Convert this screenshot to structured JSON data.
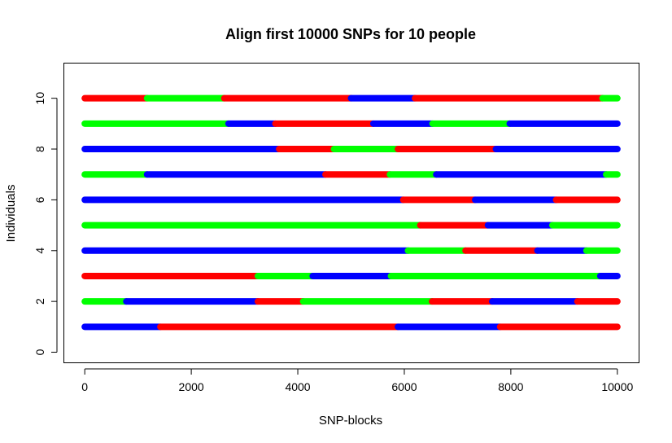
{
  "chart_data": {
    "type": "line",
    "title": "Align first 10000 SNPs for 10 people",
    "xlabel": "SNP-blocks",
    "ylabel": "Individuals",
    "xlim": [
      -400,
      10400
    ],
    "ylim": [
      -0.4,
      11.4
    ],
    "xticks": [
      0,
      2000,
      4000,
      6000,
      8000,
      10000
    ],
    "yticks": [
      0,
      2,
      4,
      6,
      8,
      10
    ],
    "grid": false,
    "colors": {
      "red": "#ff0000",
      "green": "#00ff00",
      "blue": "#0000ff"
    },
    "individuals": [
      {
        "y": 1,
        "segments": [
          [
            0,
            1420,
            "blue"
          ],
          [
            1420,
            5880,
            "red"
          ],
          [
            5880,
            7800,
            "blue"
          ],
          [
            7800,
            10000,
            "red"
          ]
        ]
      },
      {
        "y": 2,
        "segments": [
          [
            0,
            780,
            "green"
          ],
          [
            780,
            3250,
            "blue"
          ],
          [
            3250,
            4100,
            "red"
          ],
          [
            4100,
            6520,
            "green"
          ],
          [
            6520,
            7650,
            "red"
          ],
          [
            7650,
            9250,
            "blue"
          ],
          [
            9250,
            10000,
            "red"
          ]
        ]
      },
      {
        "y": 3,
        "segments": [
          [
            0,
            3250,
            "red"
          ],
          [
            3250,
            4280,
            "green"
          ],
          [
            4280,
            5750,
            "blue"
          ],
          [
            5750,
            9680,
            "green"
          ],
          [
            9680,
            10000,
            "blue"
          ]
        ]
      },
      {
        "y": 4,
        "segments": [
          [
            0,
            6070,
            "blue"
          ],
          [
            6070,
            7150,
            "green"
          ],
          [
            7150,
            8500,
            "red"
          ],
          [
            8500,
            9420,
            "blue"
          ],
          [
            9420,
            10000,
            "green"
          ]
        ]
      },
      {
        "y": 5,
        "segments": [
          [
            0,
            6300,
            "green"
          ],
          [
            6300,
            7570,
            "red"
          ],
          [
            7570,
            8780,
            "blue"
          ],
          [
            8780,
            10000,
            "green"
          ]
        ]
      },
      {
        "y": 6,
        "segments": [
          [
            0,
            5980,
            "blue"
          ],
          [
            5980,
            7330,
            "red"
          ],
          [
            7330,
            8850,
            "blue"
          ],
          [
            8850,
            10000,
            "red"
          ]
        ]
      },
      {
        "y": 7,
        "segments": [
          [
            0,
            1170,
            "green"
          ],
          [
            1170,
            4520,
            "blue"
          ],
          [
            4520,
            5730,
            "red"
          ],
          [
            5730,
            6600,
            "green"
          ],
          [
            6600,
            9790,
            "blue"
          ],
          [
            9790,
            10000,
            "green"
          ]
        ]
      },
      {
        "y": 8,
        "segments": [
          [
            0,
            3650,
            "blue"
          ],
          [
            3650,
            4680,
            "red"
          ],
          [
            4680,
            5880,
            "green"
          ],
          [
            5880,
            7720,
            "red"
          ],
          [
            7720,
            10000,
            "blue"
          ]
        ]
      },
      {
        "y": 9,
        "segments": [
          [
            0,
            2700,
            "green"
          ],
          [
            2700,
            3580,
            "blue"
          ],
          [
            3580,
            5420,
            "red"
          ],
          [
            5420,
            6530,
            "blue"
          ],
          [
            6530,
            7980,
            "green"
          ],
          [
            7980,
            10000,
            "blue"
          ]
        ]
      },
      {
        "y": 10,
        "segments": [
          [
            0,
            1170,
            "red"
          ],
          [
            1170,
            2620,
            "green"
          ],
          [
            2620,
            5000,
            "red"
          ],
          [
            5000,
            6200,
            "blue"
          ],
          [
            6200,
            9720,
            "red"
          ],
          [
            9720,
            10000,
            "green"
          ]
        ]
      }
    ]
  }
}
